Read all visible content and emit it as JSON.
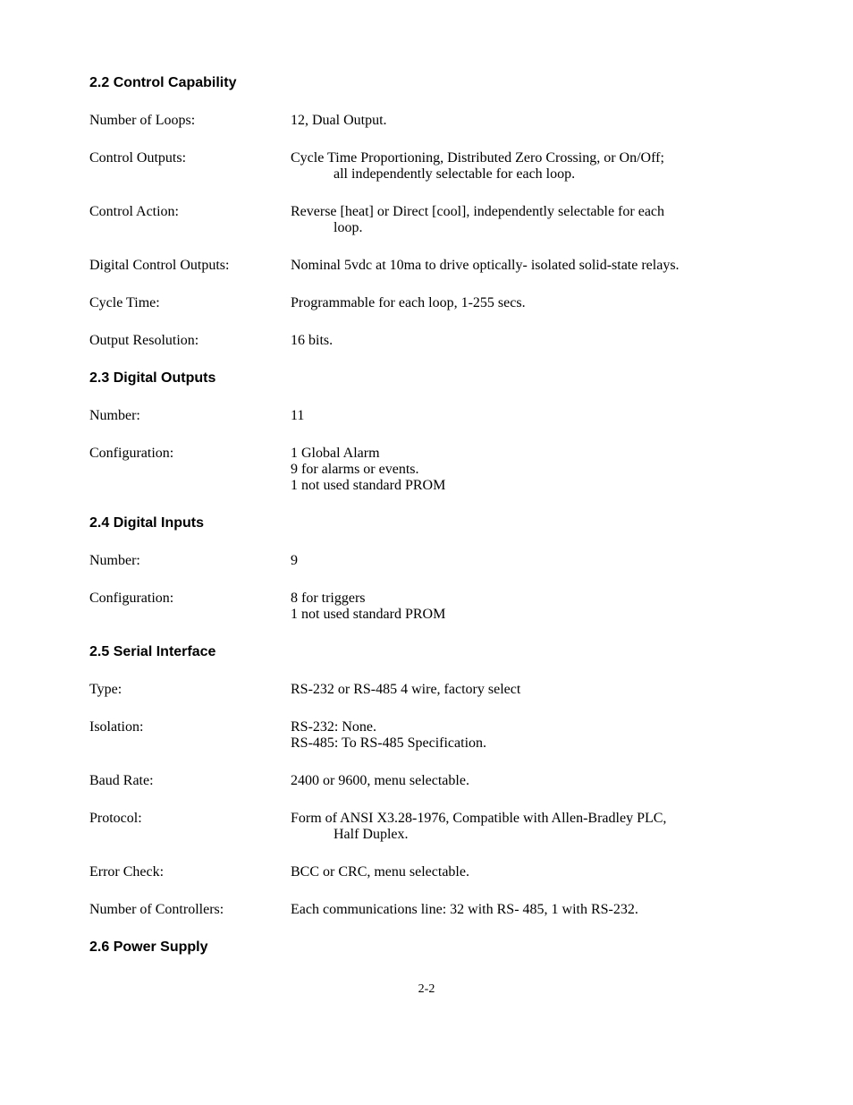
{
  "sections": {
    "s22": {
      "heading": "2.2 Control Capability",
      "rows": {
        "numloops": {
          "label": "Number of Loops:",
          "value": "12, Dual Output."
        },
        "ctrlout": {
          "label": "Control Outputs:",
          "v1": "Cycle Time Proportioning, Distributed Zero Crossing, or On/Off;",
          "v2": "all independently selectable for each loop."
        },
        "ctrlact": {
          "label": "Control Action:",
          "v1": "Reverse [heat] or Direct [cool], independently selectable for each",
          "v2": "loop."
        },
        "digout": {
          "label": "Digital Control Outputs:",
          "value": "Nominal 5vdc at 10ma to drive optically- isolated solid-state relays."
        },
        "cycle": {
          "label": "Cycle Time:",
          "value": "Programmable for each loop, 1-255 secs."
        },
        "outres": {
          "label": "Output Resolution:",
          "value": "16 bits."
        }
      }
    },
    "s23": {
      "heading": "2.3 Digital Outputs",
      "rows": {
        "num": {
          "label": "Number:",
          "value": "11"
        },
        "cfg": {
          "label": "Configuration:",
          "l1": "1 Global Alarm",
          "l2": "9 for alarms or events.",
          "l3": "1 not used standard PROM"
        }
      }
    },
    "s24": {
      "heading": "2.4 Digital Inputs",
      "rows": {
        "num": {
          "label": "Number:",
          "value": "9"
        },
        "cfg": {
          "label": "Configuration:",
          "l1": "8 for triggers",
          "l2": "1 not used standard PROM"
        }
      }
    },
    "s25": {
      "heading": "2.5 Serial Interface",
      "rows": {
        "type": {
          "label": "Type:",
          "value": "RS-232 or RS-485 4 wire, factory select"
        },
        "iso": {
          "label": "Isolation:",
          "l1": "RS-232: None.",
          "l2": "RS-485: To RS-485 Specification."
        },
        "baud": {
          "label": "Baud Rate:",
          "value": "2400 or 9600, menu selectable."
        },
        "proto": {
          "label": "Protocol:",
          "v1": "Form of ANSI X3.28-1976, Compatible with Allen-Bradley PLC,",
          "v2": "Half Duplex."
        },
        "err": {
          "label": "Error Check:",
          "value": "BCC or CRC, menu selectable."
        },
        "numc": {
          "label": "Number of Controllers:",
          "value": "Each communications line: 32 with RS- 485, 1 with RS-232."
        }
      }
    },
    "s26": {
      "heading": "2.6 Power Supply"
    }
  },
  "pagenum": "2-2"
}
